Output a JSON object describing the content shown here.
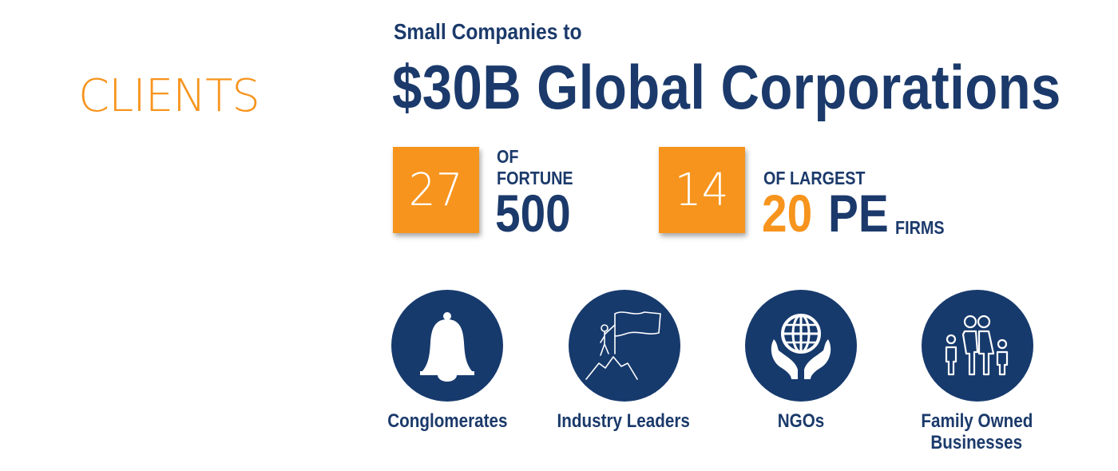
{
  "section_title": "CLIENTS",
  "subheading": "Small Companies to",
  "headline": "$30B Global Corporations",
  "stats": [
    {
      "number": "27",
      "line1": "OF",
      "line2": "FORTUNE",
      "big": "500"
    },
    {
      "number": "14",
      "line1": "OF LARGEST",
      "big_orange": "20",
      "big_navy": "PE",
      "suffix": "FIRMS"
    }
  ],
  "categories": [
    {
      "label": "Conglomerates",
      "icon": "bell-icon"
    },
    {
      "label": "Industry Leaders",
      "icon": "flag-climber-icon"
    },
    {
      "label": "NGOs",
      "icon": "globe-hands-icon"
    },
    {
      "label_line1": "Family Owned",
      "label_line2": "Businesses",
      "icon": "family-icon"
    }
  ],
  "colors": {
    "navy": "#1b3a6b",
    "orange": "#f7941d",
    "background": "#ffffff"
  }
}
